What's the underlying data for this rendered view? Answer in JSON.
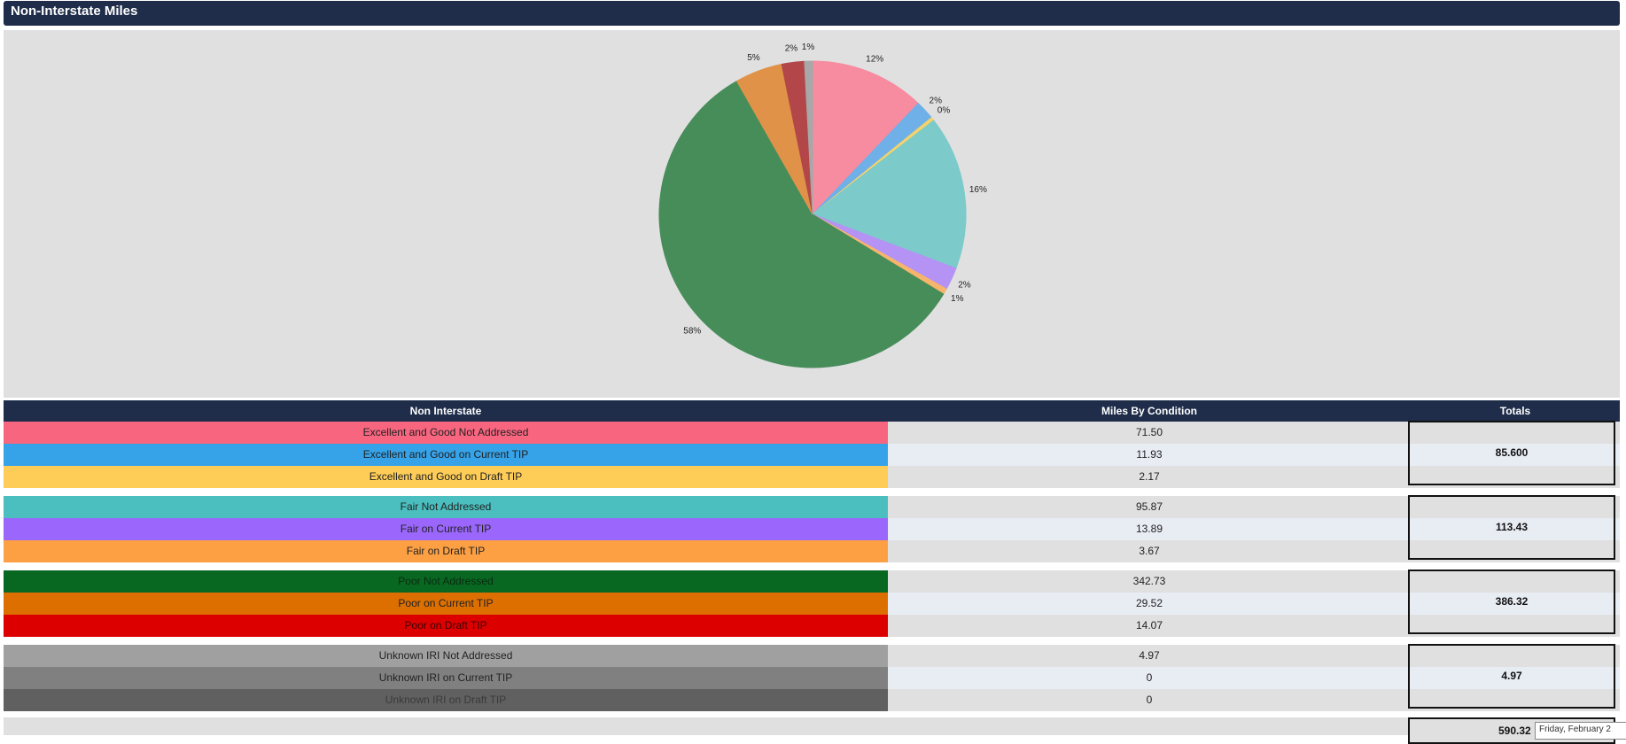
{
  "header": {
    "title": "Non-Interstate Miles"
  },
  "chart_data": {
    "type": "pie",
    "slices": [
      {
        "label": "Excellent and Good Not Addressed",
        "value": 71.5,
        "pct_label": "12%",
        "color": "#f78ba0"
      },
      {
        "label": "Excellent and Good on Current TIP",
        "value": 11.93,
        "pct_label": "2%",
        "color": "#6fb0e8"
      },
      {
        "label": "Excellent and Good on Draft TIP",
        "value": 2.17,
        "pct_label": "0%",
        "color": "#f5d36a"
      },
      {
        "label": "Fair Not Addressed",
        "value": 95.87,
        "pct_label": "16%",
        "color": "#7ccaca"
      },
      {
        "label": "Fair on Current TIP",
        "value": 13.89,
        "pct_label": "2%",
        "color": "#b493f5"
      },
      {
        "label": "Fair on Draft TIP",
        "value": 3.67,
        "pct_label": "1%",
        "color": "#f7b56b"
      },
      {
        "label": "Poor Not Addressed",
        "value": 342.73,
        "pct_label": "58%",
        "color": "#478d5a"
      },
      {
        "label": "Poor on Current TIP",
        "value": 29.52,
        "pct_label": "5%",
        "color": "#e09248"
      },
      {
        "label": "Poor on Draft TIP",
        "value": 14.07,
        "pct_label": "2%",
        "color": "#b24648"
      },
      {
        "label": "Unknown IRI Not Addressed",
        "value": 4.97,
        "pct_label": "1%",
        "color": "#a8a8a8"
      },
      {
        "label": "Unknown IRI on Current TIP",
        "value": 0,
        "pct_label": "",
        "color": "#808080"
      },
      {
        "label": "Unknown IRI on Draft TIP",
        "value": 0,
        "pct_label": "",
        "color": "#606060"
      }
    ]
  },
  "table": {
    "headers": {
      "name": "Non Interstate",
      "miles": "Miles By Condition",
      "totals": "Totals"
    },
    "groups": [
      {
        "total": "85.600",
        "rows": [
          {
            "name": "Excellent and Good Not Addressed",
            "miles": "71.50",
            "bg": "#f7657f",
            "fg": "#222222"
          },
          {
            "name": "Excellent and Good on Current TIP",
            "miles": "11.93",
            "bg": "#36a2e8",
            "fg": "#222222"
          },
          {
            "name": "Excellent and Good on Draft TIP",
            "miles": "2.17",
            "bg": "#fecd57",
            "fg": "#222222"
          }
        ]
      },
      {
        "total": "113.43",
        "rows": [
          {
            "name": "Fair Not Addressed",
            "miles": "95.87",
            "bg": "#4bbfbf",
            "fg": "#222222"
          },
          {
            "name": "Fair on Current TIP",
            "miles": "13.89",
            "bg": "#9a66fb",
            "fg": "#222222"
          },
          {
            "name": "Fair on Draft TIP",
            "miles": "3.67",
            "bg": "#fda043",
            "fg": "#222222"
          }
        ]
      },
      {
        "total": "386.32",
        "rows": [
          {
            "name": "Poor Not Addressed",
            "miles": "342.73",
            "bg": "#086822",
            "fg": "#0a2a10"
          },
          {
            "name": "Poor on Current TIP",
            "miles": "29.52",
            "bg": "#dd6f00",
            "fg": "#222222"
          },
          {
            "name": "Poor on Draft TIP",
            "miles": "14.07",
            "bg": "#dc0000",
            "fg": "#3a0000"
          }
        ]
      },
      {
        "total": "4.97",
        "rows": [
          {
            "name": "Unknown IRI Not Addressed",
            "miles": "4.97",
            "bg": "#a0a0a0",
            "fg": "#222222"
          },
          {
            "name": "Unknown IRI on Current TIP",
            "miles": "0",
            "bg": "#808080",
            "fg": "#222222"
          },
          {
            "name": "Unknown IRI on Draft TIP",
            "miles": "0",
            "bg": "#606060",
            "fg": "#3a3a3a"
          }
        ]
      }
    ],
    "grand_total": "590.32",
    "tooltip": "Friday, February 2"
  }
}
